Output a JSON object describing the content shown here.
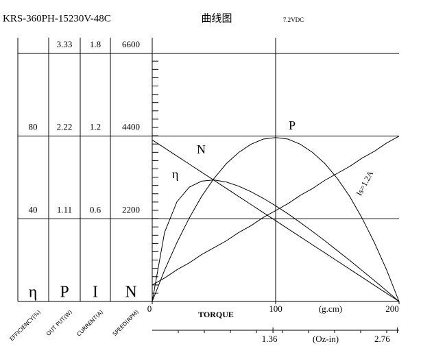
{
  "chart_data": {
    "type": "line",
    "title": "KRS-360PH-15230V-48C",
    "subtitle": "曲线图",
    "voltage": "7.2VDC",
    "x": [
      0,
      10,
      20,
      30,
      40,
      50,
      60,
      70,
      80,
      90,
      100,
      110,
      120,
      130,
      140,
      150,
      160,
      170,
      180,
      190,
      200
    ],
    "xlim": [
      0,
      200
    ],
    "xticks": [
      0,
      100,
      200
    ],
    "xlabel": "TORQUE",
    "xunit": "(g.cm)",
    "x2lim": [
      0,
      2.78
    ],
    "x2ticks": [
      1.36,
      2.76
    ],
    "x2unit": "(Oz-in)",
    "current_annotation": "Is=1.2A",
    "grid": true,
    "series": [
      {
        "name": "η",
        "axis_label": "EFFICIENCY(%)",
        "color": "#000000",
        "ylim": [
          0,
          120
        ],
        "yticks": [
          40,
          80
        ],
        "values": [
          0,
          33.4,
          48.2,
          55.3,
          58.2,
          58.8,
          57.8,
          55.8,
          53.1,
          49.9,
          46.3,
          42.4,
          38.2,
          33.8,
          29.3,
          24.6,
          19.9,
          15.0,
          10.1,
          5.1,
          0
        ]
      },
      {
        "name": "P",
        "axis_label": "OUT PUT(W)",
        "color": "#000000",
        "ylim": [
          0,
          3.33
        ],
        "yticks": [
          1.11,
          2.22,
          3.33
        ],
        "values": [
          0,
          0.42,
          0.79,
          1.12,
          1.41,
          1.65,
          1.85,
          2.0,
          2.11,
          2.18,
          2.2,
          2.18,
          2.11,
          2.0,
          1.85,
          1.65,
          1.41,
          1.12,
          0.79,
          0.42,
          0
        ]
      },
      {
        "name": "I",
        "axis_label": "CURRENT(A)",
        "color": "#000000",
        "ylim": [
          0,
          1.8
        ],
        "yticks": [
          0.6,
          1.2,
          1.8
        ],
        "values": [
          0.12,
          0.17,
          0.23,
          0.28,
          0.34,
          0.39,
          0.44,
          0.5,
          0.55,
          0.61,
          0.66,
          0.71,
          0.77,
          0.82,
          0.88,
          0.93,
          0.98,
          1.04,
          1.09,
          1.15,
          1.2
        ]
      },
      {
        "name": "N",
        "axis_label": "SPEED(RPM)",
        "color": "#000000",
        "ylim": [
          0,
          6600
        ],
        "yticks": [
          2200,
          4400,
          6600
        ],
        "values": [
          4300,
          4085,
          3870,
          3655,
          3440,
          3225,
          3010,
          2795,
          2580,
          2365,
          2150,
          1935,
          1720,
          1505,
          1290,
          1075,
          860,
          645,
          430,
          215,
          0
        ]
      }
    ]
  }
}
